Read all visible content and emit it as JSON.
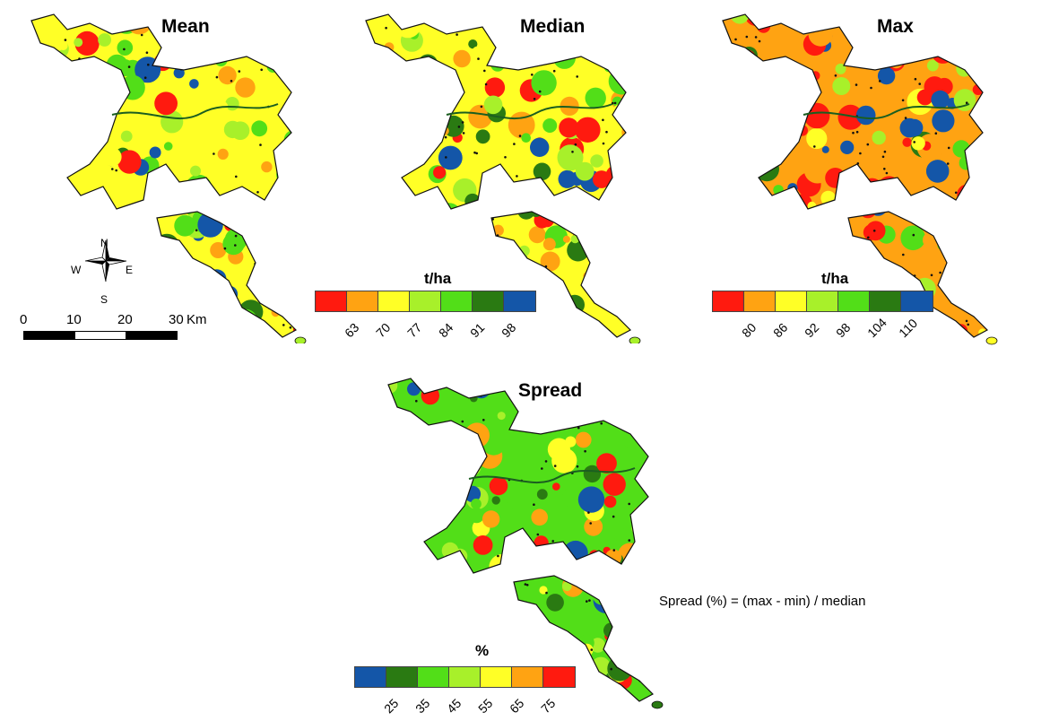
{
  "palette": {
    "red": "#ff1a0f",
    "orange": "#ffa312",
    "yellow": "#ffff26",
    "lightgreen": "#a8f02a",
    "green": "#52de18",
    "darkgreen": "#2a7a12",
    "blue": "#1456a8"
  },
  "panels": [
    {
      "id": "mean",
      "title": "Mean"
    },
    {
      "id": "median",
      "title": "Median"
    },
    {
      "id": "max",
      "title": "Max"
    },
    {
      "id": "spread",
      "title": "Spread"
    }
  ],
  "legends": {
    "median": {
      "unit": "t/ha",
      "colors": [
        "red",
        "orange",
        "yellow",
        "lightgreen",
        "green",
        "darkgreen",
        "blue"
      ],
      "ticks": [
        "63",
        "70",
        "77",
        "84",
        "91",
        "98"
      ]
    },
    "max": {
      "unit": "t/ha",
      "colors": [
        "red",
        "orange",
        "yellow",
        "lightgreen",
        "green",
        "darkgreen",
        "blue"
      ],
      "ticks": [
        "80",
        "86",
        "92",
        "98",
        "104",
        "110"
      ]
    },
    "spread": {
      "unit": "%",
      "colors": [
        "blue",
        "darkgreen",
        "green",
        "lightgreen",
        "yellow",
        "orange",
        "red"
      ],
      "ticks": [
        "25",
        "35",
        "45",
        "55",
        "65",
        "75"
      ]
    }
  },
  "compass": {
    "n": "N",
    "s": "S",
    "e": "E",
    "w": "W"
  },
  "scale_bar": {
    "labels": [
      "0",
      "10",
      "20",
      "30"
    ],
    "unit": "Km"
  },
  "formula_note": "Spread (%) = (max - min) / median"
}
